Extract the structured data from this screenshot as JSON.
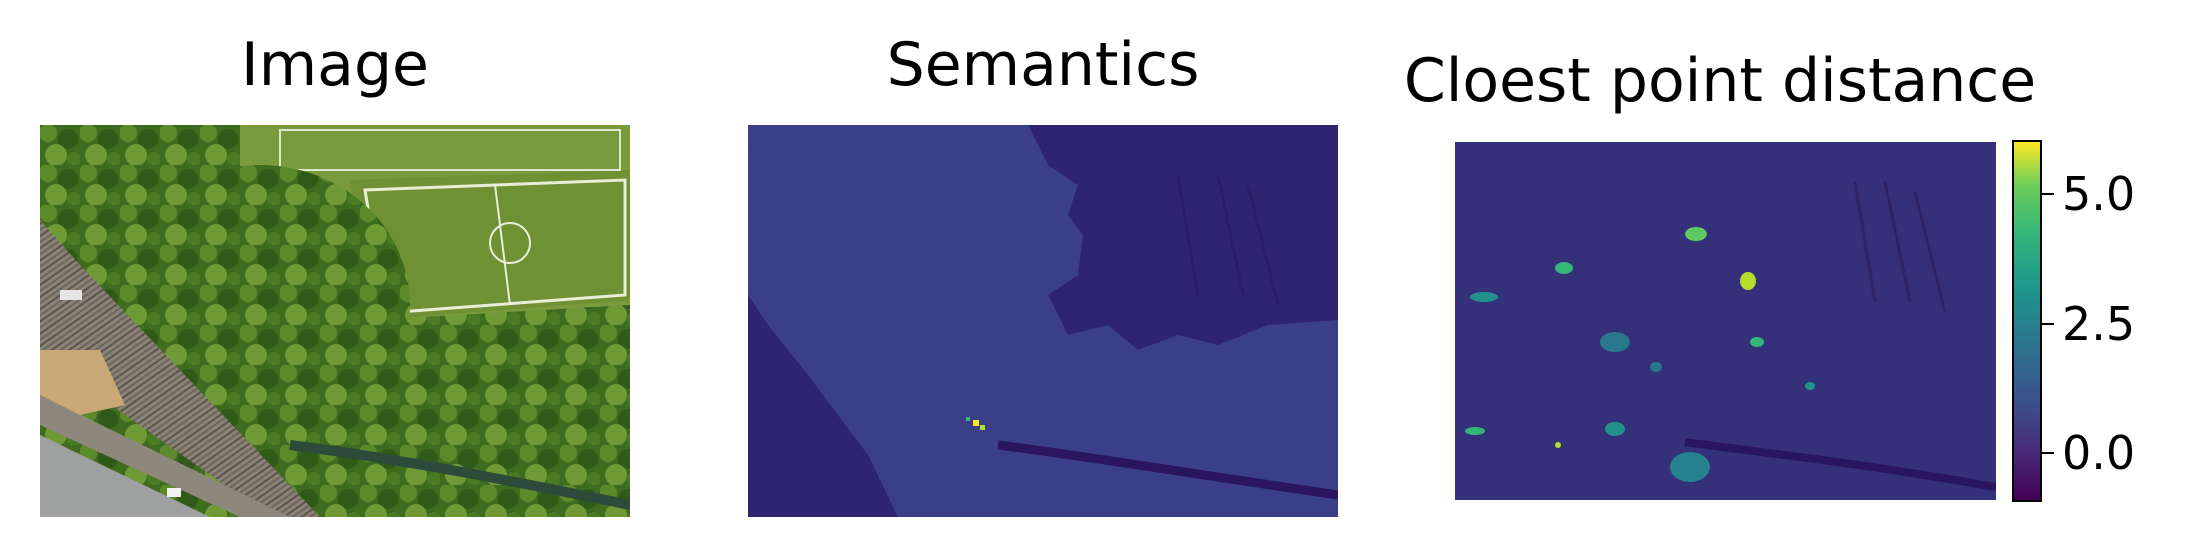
{
  "chart_data": [
    {
      "type": "image",
      "title": "Image"
    },
    {
      "type": "heatmap",
      "title": "Semantics"
    },
    {
      "type": "heatmap",
      "title": "Cloest point distance",
      "colorbar": {
        "colormap": "viridis",
        "range": [
          -0.9,
          6.0
        ],
        "ticks": [
          0.0,
          2.5,
          5.0
        ],
        "tick_labels": [
          "0.0",
          "2.5",
          "5.0"
        ]
      }
    }
  ],
  "colors": {
    "viridis_low": "#440154",
    "viridis_mid": "#21918c",
    "viridis_high": "#fde725",
    "semantics_base": "#3b3f87",
    "semantics_dark": "#2f2470",
    "distance_base": "#34307a"
  }
}
